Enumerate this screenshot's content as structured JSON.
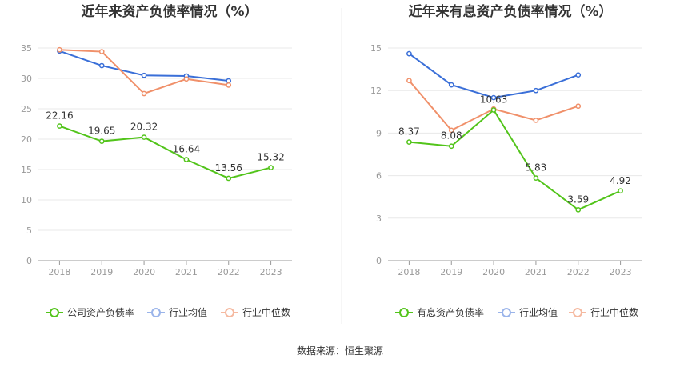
{
  "source_label": "数据来源：恒生聚源",
  "chart_data": [
    {
      "type": "line",
      "title": "近年来资产负债率情况（%）",
      "categories": [
        "2018",
        "2019",
        "2020",
        "2021",
        "2022",
        "2023"
      ],
      "ylim": [
        0,
        35
      ],
      "yticks": [
        "0",
        "5",
        "10",
        "15",
        "20",
        "25",
        "30",
        "35"
      ],
      "grid": true,
      "legend_position": "bottom",
      "series": [
        {
          "name": "公司资产负债率",
          "color": "#52c41a",
          "values": [
            22.16,
            19.65,
            20.32,
            16.64,
            13.56,
            15.32
          ],
          "labels": [
            "22.16",
            "19.65",
            "20.32",
            "16.64",
            "13.56",
            "15.32"
          ]
        },
        {
          "name": "行业均值",
          "color": "#3a6fd8",
          "values": [
            34.5,
            32.1,
            30.5,
            30.4,
            29.6,
            null
          ]
        },
        {
          "name": "行业中位数",
          "color": "#f0906a",
          "values": [
            34.7,
            34.4,
            27.5,
            29.9,
            28.9,
            null
          ]
        }
      ]
    },
    {
      "type": "line",
      "title": "近年来有息资产负债率情况（%）",
      "categories": [
        "2018",
        "2019",
        "2020",
        "2021",
        "2022",
        "2023"
      ],
      "ylim": [
        0,
        15
      ],
      "yticks": [
        "0",
        "3",
        "6",
        "9",
        "12",
        "15"
      ],
      "grid": true,
      "legend_position": "bottom",
      "series": [
        {
          "name": "有息资产负债率",
          "color": "#52c41a",
          "values": [
            8.37,
            8.08,
            10.63,
            5.83,
            3.59,
            4.92
          ],
          "labels": [
            "8.37",
            "8.08",
            "10.63",
            "5.83",
            "3.59",
            "4.92"
          ]
        },
        {
          "name": "行业均值",
          "color": "#3a6fd8",
          "values": [
            14.6,
            12.4,
            11.5,
            12.0,
            13.1,
            null
          ]
        },
        {
          "name": "行业中位数",
          "color": "#f0906a",
          "values": [
            12.7,
            9.2,
            10.7,
            9.9,
            10.9,
            null
          ]
        }
      ]
    }
  ]
}
